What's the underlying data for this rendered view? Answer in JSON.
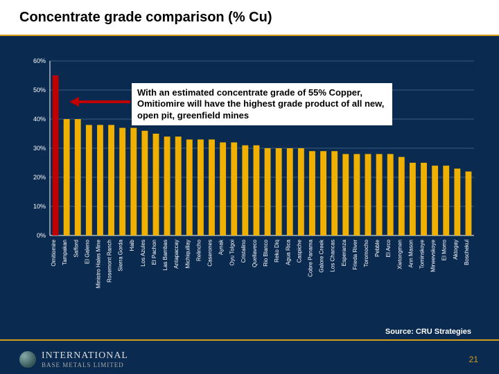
{
  "title": "Concentrate grade comparison (% Cu)",
  "callout_text": "With an estimated concentrate grade of 55% Copper, Omitiomire will have the highest grade product of all new, open pit, greenfield mines",
  "source_text": "Source: CRU Strategies",
  "logo_line1": "INTERNATIONAL",
  "logo_line2": "BASE METALS LIMITED",
  "page_number": "21",
  "chart": {
    "type": "bar",
    "background": "#0a2a50",
    "axis_color": "#ffffff",
    "grid_color": "#6a88a8",
    "tick_fontsize": 8,
    "ylabel_fontsize": 9,
    "ylim": [
      0,
      60
    ],
    "ytick_step": 10,
    "yticks": [
      "0%",
      "10%",
      "20%",
      "30%",
      "40%",
      "50%",
      "60%"
    ],
    "bar_color": "#f0b000",
    "highlight_color": "#c00000",
    "highlight_index": 0,
    "bar_width_ratio": 0.55,
    "categories": [
      "Omitiomire",
      "Tampakan",
      "Safford",
      "El Galeno",
      "Ministro Hales Mine",
      "Rosemont Ranch",
      "Sierra Gorda",
      "Haib",
      "Los Azules",
      "El Pachon",
      "Las Bambas",
      "Antapaccay",
      "Michiquillay",
      "Relincho",
      "Caserones",
      "Aynak",
      "Oyu Tolgoi",
      "Cristalino",
      "Quellaveco",
      "Rio Blanco",
      "Reko Diq",
      "Agua Rica",
      "Caspiche",
      "Cobre Panama",
      "Galore Creek",
      "Los Chancas",
      "Esperanza",
      "Frieda River",
      "Toromocho",
      "Pebble",
      "El Arco",
      "Xietongmen",
      "Ann Mason",
      "Tominskoye",
      "Mineevskoye",
      "El Morro",
      "Aktogay",
      "Boschekul"
    ],
    "values": [
      55,
      40,
      40,
      38,
      38,
      38,
      37,
      37,
      36,
      35,
      34,
      34,
      33,
      33,
      33,
      32,
      32,
      31,
      31,
      30,
      30,
      30,
      30,
      29,
      29,
      29,
      28,
      28,
      28,
      28,
      28,
      27,
      25,
      25,
      24,
      24,
      23,
      22
    ]
  }
}
